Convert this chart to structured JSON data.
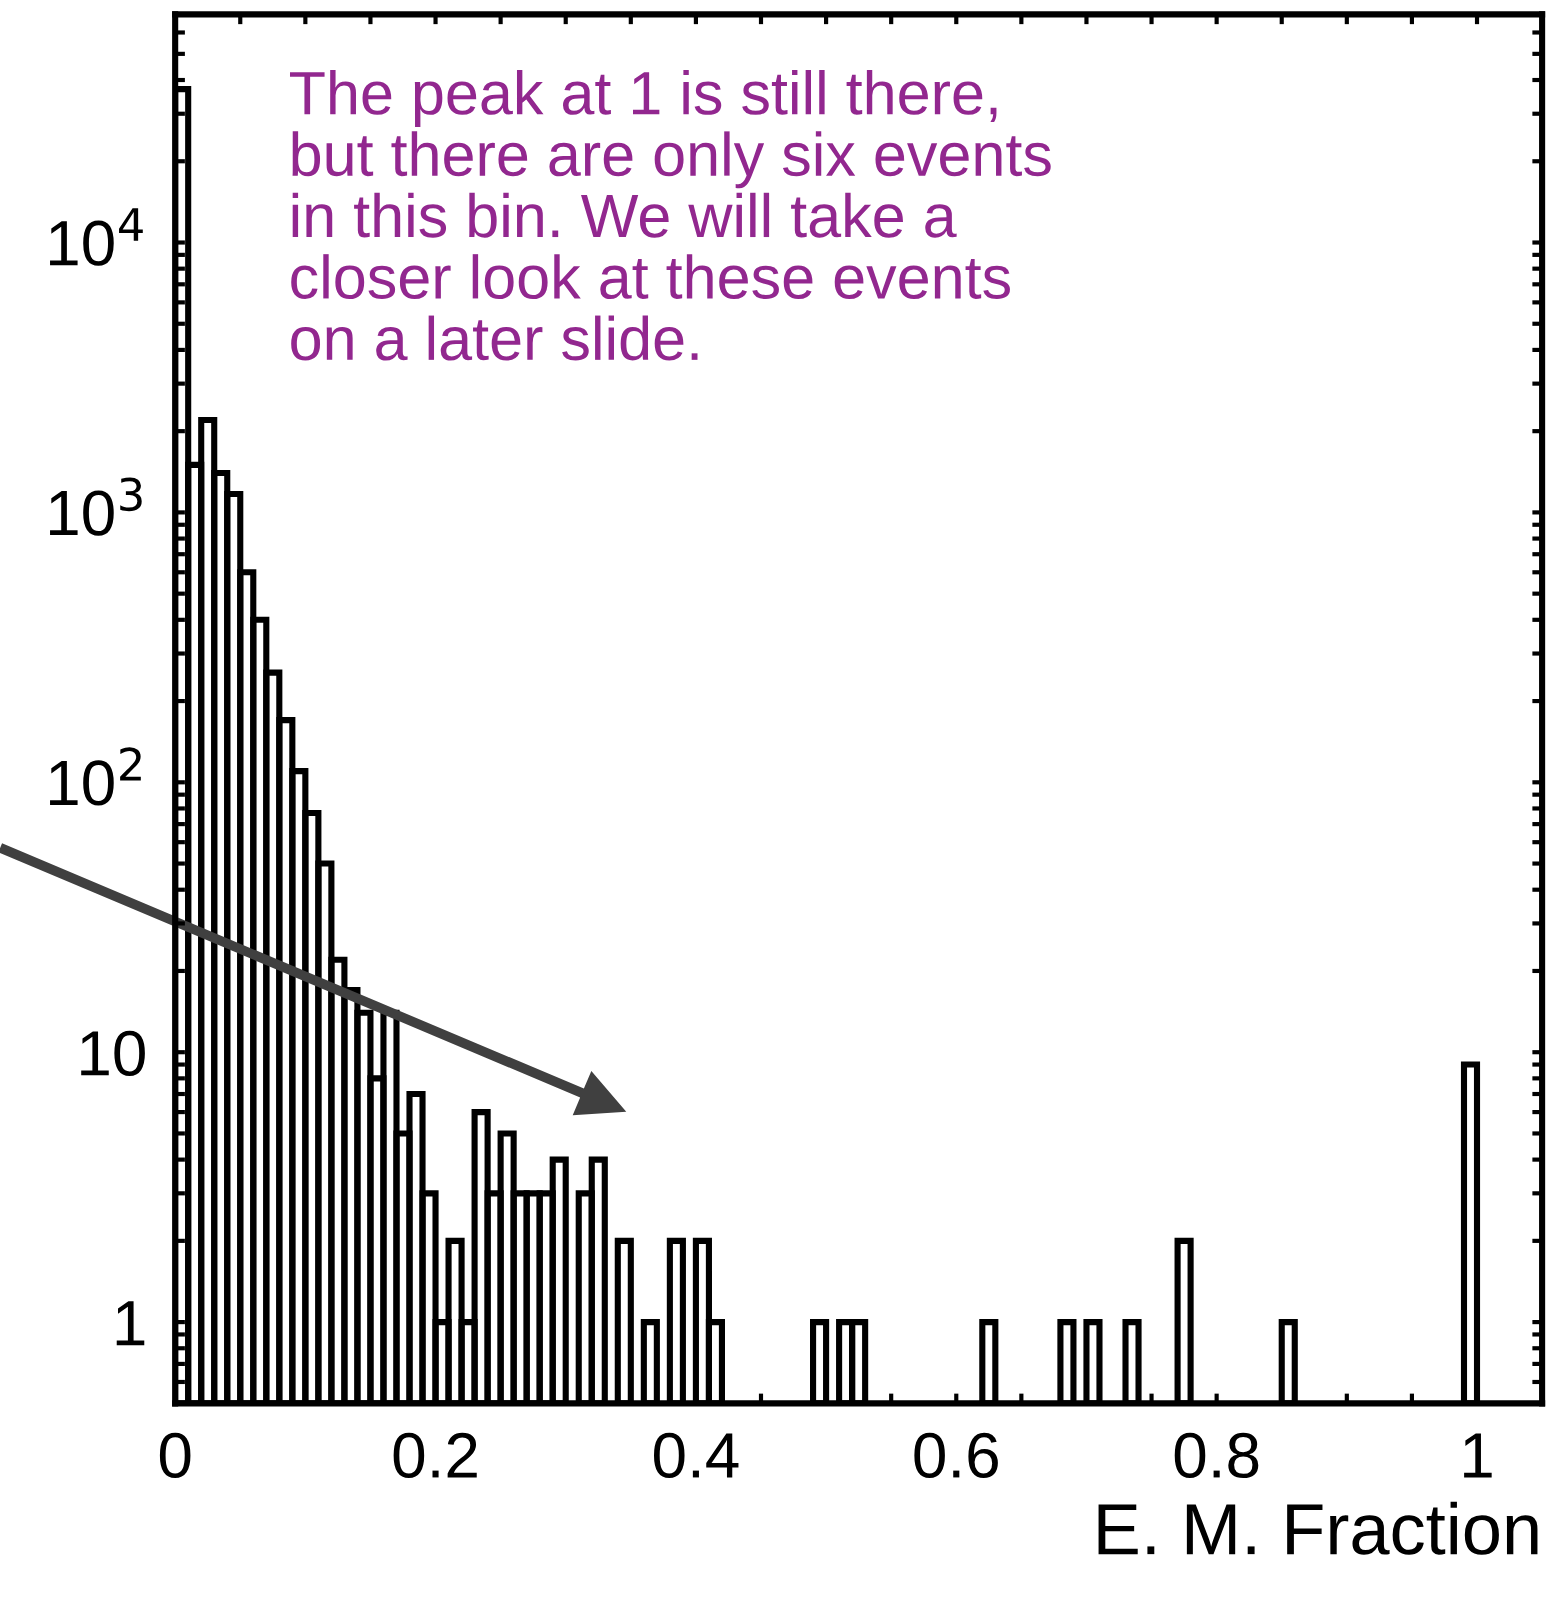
{
  "chart_data": {
    "type": "histogram",
    "xlabel": "E. M. Fraction",
    "annotations": [
      "The peak at 1 is still there,\nbut there are only six events\nin this bin. We will take a\ncloser look at these events\non a later slide."
    ],
    "bins": [
      0,
      0.01,
      0.02,
      0.03,
      0.04,
      0.05,
      0.06,
      0.07,
      0.08,
      0.09,
      0.1,
      0.11,
      0.12,
      0.13,
      0.14,
      0.15,
      0.16,
      0.17,
      0.18,
      0.19,
      0.2,
      0.21,
      0.22,
      0.23,
      0.24,
      0.25,
      0.26,
      0.27,
      0.28,
      0.29,
      0.3,
      0.31,
      0.32,
      0.33,
      0.34,
      0.35,
      0.36,
      0.37,
      0.38,
      0.39,
      0.4,
      0.41,
      0.42,
      0.43,
      0.44,
      0.45,
      0.46,
      0.47,
      0.48,
      0.49,
      0.5,
      0.51,
      0.52,
      0.53,
      0.54,
      0.55,
      0.56,
      0.57,
      0.58,
      0.59,
      0.6,
      0.61,
      0.62,
      0.63,
      0.64,
      0.65,
      0.66,
      0.67,
      0.68,
      0.69,
      0.7,
      0.71,
      0.72,
      0.73,
      0.74,
      0.75,
      0.76,
      0.77,
      0.78,
      0.79,
      0.8,
      0.81,
      0.82,
      0.83,
      0.84,
      0.85,
      0.86,
      0.87,
      0.88,
      0.89,
      0.9,
      0.91,
      0.92,
      0.93,
      0.94,
      0.95,
      0.96,
      0.97,
      0.98,
      0.99,
      1.0
    ],
    "values": [
      37000,
      1500,
      2200,
      1400,
      1170,
      600,
      400,
      255,
      170,
      110,
      77,
      50,
      22,
      17,
      14,
      8,
      14,
      5,
      7,
      3,
      1,
      2,
      1,
      6,
      3,
      5,
      3,
      3,
      3,
      4,
      null,
      3,
      4,
      null,
      2,
      null,
      1,
      null,
      2,
      null,
      2,
      1,
      null,
      null,
      null,
      null,
      null,
      null,
      null,
      1,
      null,
      1,
      1,
      null,
      null,
      null,
      null,
      null,
      null,
      null,
      null,
      null,
      1,
      null,
      null,
      null,
      null,
      null,
      1,
      null,
      1,
      null,
      null,
      1,
      null,
      null,
      null,
      2,
      null,
      null,
      null,
      null,
      null,
      null,
      null,
      1,
      null,
      null,
      null,
      null,
      null,
      null,
      null,
      null,
      null,
      null,
      null,
      null,
      null,
      9
    ],
    "color": "#000000",
    "log": "y",
    "xlim": [
      0,
      1.05
    ],
    "xticks": [
      0,
      {
        "value": 0.05,
        "label": null
      },
      0.2,
      {
        "value": 0.1,
        "label": null
      },
      {
        "value": 0.15,
        "label": null
      },
      {
        "value": 0.25,
        "label": null
      },
      {
        "value": 0.3,
        "label": null
      },
      {
        "value": 0.35,
        "label": null
      },
      0.4,
      {
        "value": 0.45,
        "label": null
      },
      {
        "value": 0.5,
        "label": null
      },
      {
        "value": 0.55,
        "label": null
      },
      0.6,
      {
        "value": 0.65,
        "label": null
      },
      {
        "value": 0.7,
        "label": null
      },
      {
        "value": 0.75,
        "label": null
      },
      0.8,
      {
        "value": 0.85,
        "label": null
      },
      {
        "value": 0.9,
        "label": null
      },
      {
        "value": 0.95,
        "label": null
      },
      1,
      {
        "value": 1.05,
        "label": null
      }
    ],
    "ylim": [
      0.5,
      70000
    ],
    "yticks": [
      1,
      10,
      {
        "value": 100,
        "label": "10$^{2}$"
      },
      {
        "value": 1000,
        "label": "10$^{3}$"
      },
      {
        "value": 10000,
        "label": "10$^{4}$"
      },
      {
        "value": 0.6,
        "label": null
      },
      {
        "value": 0.7,
        "label": null
      },
      {
        "value": 0.8,
        "label": null
      },
      {
        "value": 0.9,
        "label": null
      },
      {
        "value": 2,
        "label": null
      },
      {
        "value": 3,
        "label": null
      },
      {
        "value": 4,
        "label": null
      },
      {
        "value": 5,
        "label": null
      },
      {
        "value": 6,
        "label": null
      },
      {
        "value": 7,
        "label": null
      },
      {
        "value": 8,
        "label": null
      },
      {
        "value": 9,
        "label": null
      },
      {
        "value": 20,
        "label": null
      },
      {
        "value": 30,
        "label": null
      },
      {
        "value": 40,
        "label": null
      },
      {
        "value": 50,
        "label": null
      },
      {
        "value": 60,
        "label": null
      },
      {
        "value": 70,
        "label": null
      },
      {
        "value": 80,
        "label": null
      },
      {
        "value": 90,
        "label": null
      },
      {
        "value": 200,
        "label": null
      },
      {
        "value": 300,
        "label": null
      },
      {
        "value": 400,
        "label": null
      },
      {
        "value": 500,
        "label": null
      },
      {
        "value": 600,
        "label": null
      },
      {
        "value": 700,
        "label": null
      },
      {
        "value": 800,
        "label": null
      },
      {
        "value": 900,
        "label": null
      },
      {
        "value": 2000,
        "label": null
      },
      {
        "value": 3000,
        "label": null
      },
      {
        "value": 4000,
        "label": null
      },
      {
        "value": 5000,
        "label": null
      },
      {
        "value": 6000,
        "label": null
      },
      {
        "value": 7000,
        "label": null
      },
      {
        "value": 8000,
        "label": null
      },
      {
        "value": 9000,
        "label": null
      },
      {
        "value": 20000,
        "label": null
      },
      {
        "value": 30000,
        "label": null
      },
      {
        "value": 40000,
        "label": null
      },
      {
        "value": 50000,
        "label": null
      },
      {
        "value": 60000,
        "label": null
      }
    ],
    "grid": false,
    "legend": false
  }
}
